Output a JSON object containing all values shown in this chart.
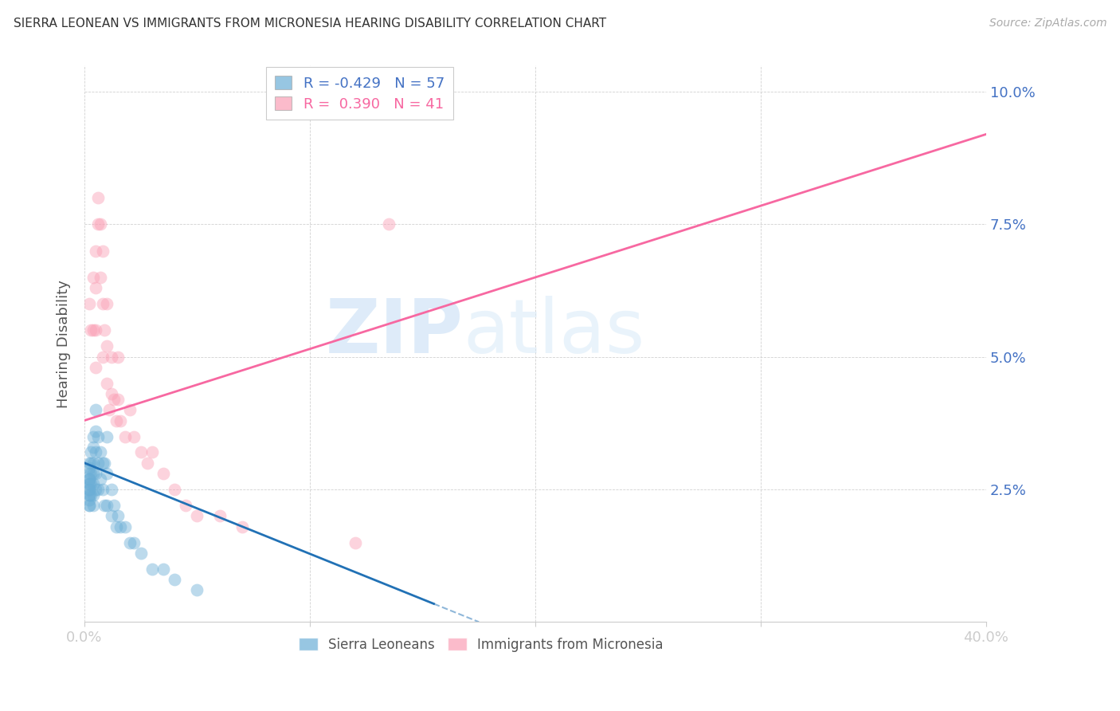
{
  "title": "SIERRA LEONEAN VS IMMIGRANTS FROM MICRONESIA HEARING DISABILITY CORRELATION CHART",
  "source": "Source: ZipAtlas.com",
  "ylabel": "Hearing Disability",
  "yticks": [
    0.0,
    0.025,
    0.05,
    0.075,
    0.1
  ],
  "ytick_labels": [
    "",
    "2.5%",
    "5.0%",
    "7.5%",
    "10.0%"
  ],
  "xlim": [
    0.0,
    0.4
  ],
  "ylim": [
    0.0,
    0.105
  ],
  "watermark": "ZIPatlas",
  "legend_blue_r": "-0.429",
  "legend_blue_n": "57",
  "legend_pink_r": "0.390",
  "legend_pink_n": "41",
  "blue_color": "#6baed6",
  "pink_color": "#fa9fb5",
  "blue_line_color": "#2171b5",
  "pink_line_color": "#f768a1",
  "axis_label_color": "#4472c4",
  "title_color": "#333333",
  "pink_line_x0": 0.0,
  "pink_line_y0": 0.038,
  "pink_line_x1": 0.4,
  "pink_line_y1": 0.092,
  "blue_line_x0": 0.0,
  "blue_line_y0": 0.03,
  "blue_line_x1": 0.175,
  "blue_line_y1": 0.0,
  "blue_scatter_x": [
    0.002,
    0.002,
    0.002,
    0.002,
    0.002,
    0.002,
    0.002,
    0.002,
    0.002,
    0.002,
    0.002,
    0.002,
    0.002,
    0.002,
    0.003,
    0.003,
    0.003,
    0.003,
    0.003,
    0.004,
    0.004,
    0.004,
    0.004,
    0.004,
    0.004,
    0.004,
    0.005,
    0.005,
    0.005,
    0.005,
    0.005,
    0.006,
    0.006,
    0.006,
    0.007,
    0.007,
    0.008,
    0.008,
    0.009,
    0.009,
    0.01,
    0.01,
    0.01,
    0.012,
    0.012,
    0.013,
    0.014,
    0.015,
    0.016,
    0.018,
    0.02,
    0.022,
    0.025,
    0.03,
    0.035,
    0.04,
    0.05
  ],
  "blue_scatter_y": [
    0.03,
    0.029,
    0.028,
    0.027,
    0.027,
    0.026,
    0.026,
    0.025,
    0.025,
    0.024,
    0.024,
    0.023,
    0.022,
    0.022,
    0.032,
    0.03,
    0.028,
    0.026,
    0.024,
    0.035,
    0.033,
    0.03,
    0.028,
    0.026,
    0.024,
    0.022,
    0.04,
    0.036,
    0.032,
    0.028,
    0.025,
    0.035,
    0.03,
    0.025,
    0.032,
    0.027,
    0.03,
    0.025,
    0.03,
    0.022,
    0.035,
    0.028,
    0.022,
    0.025,
    0.02,
    0.022,
    0.018,
    0.02,
    0.018,
    0.018,
    0.015,
    0.015,
    0.013,
    0.01,
    0.01,
    0.008,
    0.006
  ],
  "pink_scatter_x": [
    0.002,
    0.003,
    0.004,
    0.004,
    0.005,
    0.005,
    0.005,
    0.005,
    0.006,
    0.006,
    0.007,
    0.007,
    0.008,
    0.008,
    0.008,
    0.009,
    0.01,
    0.01,
    0.01,
    0.011,
    0.012,
    0.012,
    0.013,
    0.014,
    0.015,
    0.015,
    0.016,
    0.018,
    0.02,
    0.022,
    0.025,
    0.028,
    0.03,
    0.035,
    0.04,
    0.045,
    0.05,
    0.06,
    0.07,
    0.12,
    0.135
  ],
  "pink_scatter_y": [
    0.06,
    0.055,
    0.065,
    0.055,
    0.07,
    0.063,
    0.055,
    0.048,
    0.08,
    0.075,
    0.075,
    0.065,
    0.07,
    0.06,
    0.05,
    0.055,
    0.06,
    0.052,
    0.045,
    0.04,
    0.05,
    0.043,
    0.042,
    0.038,
    0.05,
    0.042,
    0.038,
    0.035,
    0.04,
    0.035,
    0.032,
    0.03,
    0.032,
    0.028,
    0.025,
    0.022,
    0.02,
    0.02,
    0.018,
    0.015,
    0.075
  ]
}
